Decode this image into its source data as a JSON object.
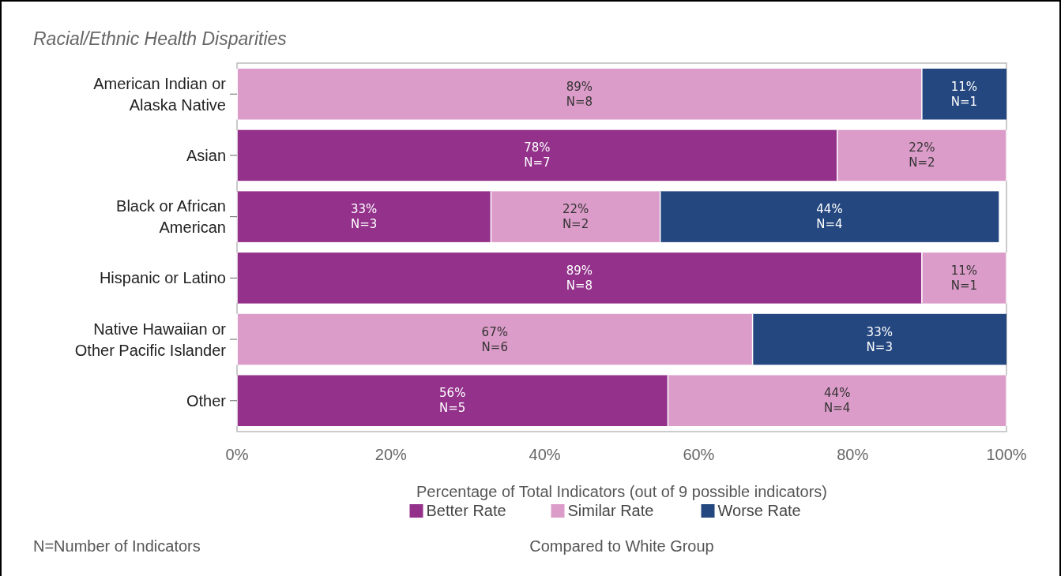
{
  "chart_data": {
    "type": "bar",
    "orientation": "horizontal",
    "stacked": true,
    "title": "Racial/Ethnic Health Disparities",
    "xlabel": "Percentage of Total Indicators (out of 9 possible indicators)",
    "legend_title": "Compared to White Group",
    "annotations": [
      "N=Number of Indicators"
    ],
    "categories": [
      "American Indian or Alaska Native",
      "Asian",
      "Black or African American",
      "Hispanic or Latino",
      "Native Hawaiian or Other Pacific Islander",
      "Other"
    ],
    "series": [
      {
        "name": "Better Rate",
        "color": "#93318b",
        "values": [
          0,
          78,
          33,
          89,
          0,
          56
        ],
        "value_labels": [
          null,
          "78%\nN=7",
          "33%\nN=3",
          "89%\nN=8",
          null,
          "56%\nN=5"
        ]
      },
      {
        "name": "Similar Rate",
        "color": "#dc9cc9",
        "values": [
          89,
          22,
          22,
          11,
          67,
          44
        ],
        "value_labels": [
          "89%\nN=8",
          "22%\nN=2",
          "22%\nN=2",
          "11%\nN=1",
          "67%\nN=6",
          "44%\nN=4"
        ]
      },
      {
        "name": "Worse Rate",
        "color": "#24477f",
        "values": [
          11,
          0,
          44,
          0,
          33,
          0
        ],
        "value_labels": [
          "11%\nN=1",
          null,
          "44%\nN=4",
          null,
          "33%\nN=3",
          null
        ]
      }
    ],
    "xlim": [
      0,
      100
    ],
    "xticks": [
      {
        "value": 0,
        "label": "0%"
      },
      {
        "value": 20,
        "label": "20%"
      },
      {
        "value": 40,
        "label": "40%"
      },
      {
        "value": 60,
        "label": "60%"
      },
      {
        "value": 80,
        "label": "80%"
      },
      {
        "value": 100,
        "label": "100%"
      }
    ],
    "grid": false,
    "legend": "bottom"
  }
}
